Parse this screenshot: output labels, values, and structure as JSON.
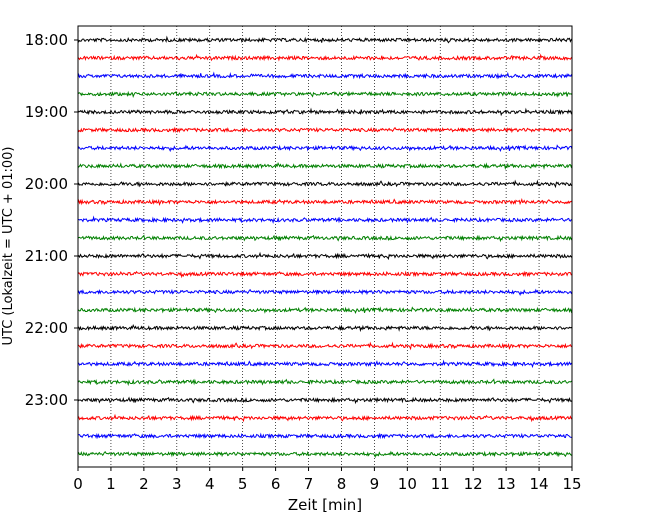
{
  "chart_data": {
    "type": "line",
    "title": "",
    "xlabel": "Zeit  [min]",
    "ylabel": "UTC (Lokalzeit = UTC + 01:00)",
    "xlim": [
      0,
      15
    ],
    "x_ticks": [
      "0",
      "1",
      "2",
      "3",
      "4",
      "5",
      "6",
      "7",
      "8",
      "9",
      "10",
      "11",
      "12",
      "13",
      "14",
      "15"
    ],
    "y_ticks": [
      "18:00",
      "19:00",
      "20:00",
      "21:00",
      "22:00",
      "23:00"
    ],
    "grid": "vertical dotted",
    "legend": "none",
    "trace_interval_minutes": 15,
    "start_time": "18:00",
    "trace_count": 24,
    "colors": [
      "#000000",
      "#ff0000",
      "#0000ff",
      "#008000"
    ]
  }
}
